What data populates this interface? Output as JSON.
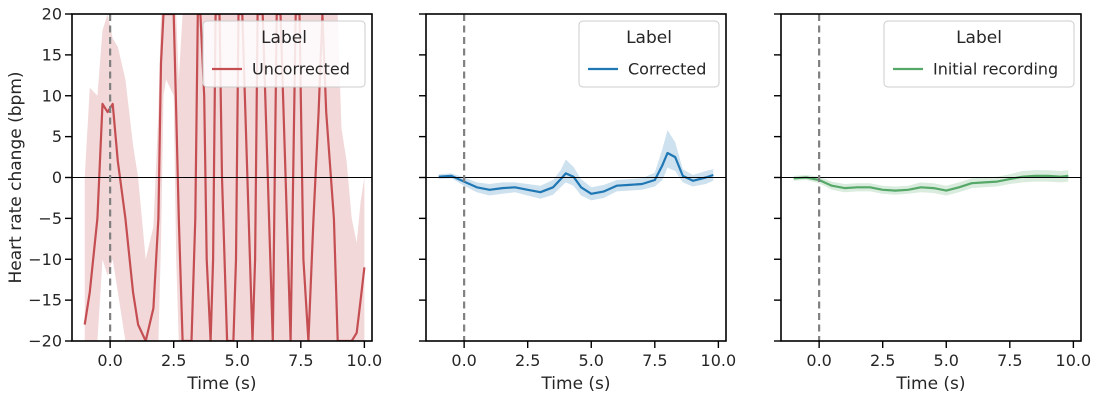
{
  "chart_data": [
    {
      "type": "line",
      "xlabel": "Time (s)",
      "ylabel": "Heart rate change (bpm)",
      "xlim": [
        -1.5,
        10.3
      ],
      "ylim": [
        -20,
        20
      ],
      "xticks": [
        0.0,
        2.5,
        5.0,
        7.5,
        10.0
      ],
      "xtick_labels": [
        "0.0",
        "2.5",
        "5.0",
        "7.5",
        "10.0"
      ],
      "yticks": [
        -20,
        -15,
        -10,
        -5,
        0,
        5,
        10,
        15,
        20
      ],
      "ytick_labels": [
        "−20",
        "−15",
        "−10",
        "−5",
        "0",
        "5",
        "10",
        "15",
        "20"
      ],
      "vline_x": 0,
      "hline_y": 0,
      "legend": {
        "title": "Label",
        "placement": "top-right"
      },
      "series": [
        {
          "name": "Uncorrected",
          "color": "#c44e52",
          "x": [
            -1.0,
            -0.8,
            -0.5,
            -0.3,
            -0.1,
            0.1,
            0.3,
            0.6,
            0.9,
            1.1,
            1.4,
            1.7,
            1.9,
            2.0,
            2.1,
            2.2,
            2.5,
            2.6,
            2.7,
            2.85,
            3.0,
            3.2,
            3.35,
            3.45,
            3.55,
            3.7,
            3.8,
            3.95,
            4.05,
            4.15,
            4.3,
            4.4,
            4.6,
            4.85,
            4.95,
            5.05,
            5.2,
            5.4,
            5.6,
            5.7,
            5.8,
            6.0,
            6.2,
            6.4,
            6.55,
            6.7,
            6.9,
            7.1,
            7.3,
            7.45,
            7.6,
            7.8,
            8.0,
            8.2,
            8.35,
            8.5,
            8.8,
            8.95,
            9.1,
            9.3,
            9.5,
            9.7,
            9.85,
            10.0
          ],
          "y": [
            -18,
            -14,
            -5,
            9,
            8,
            9,
            2,
            -5,
            -14,
            -18,
            -20,
            -16,
            -5,
            14,
            20,
            20,
            20,
            8,
            -5,
            -20,
            -20,
            -20,
            -5,
            20,
            20,
            10,
            -10,
            -20,
            -10,
            20,
            20,
            0,
            -20,
            -20,
            -10,
            20,
            20,
            0,
            -20,
            -10,
            20,
            20,
            0,
            -20,
            20,
            20,
            0,
            -20,
            20,
            20,
            -10,
            -20,
            -5,
            8,
            20,
            8,
            -5,
            -20,
            -20,
            -20,
            -20,
            -19,
            -15,
            -11
          ],
          "band_lower": [
            -20,
            -20,
            -20,
            -10,
            -12,
            -10,
            -14,
            -20,
            -20,
            -20,
            -20,
            -20,
            -20,
            -8,
            10,
            12,
            10,
            -10,
            -20,
            -20,
            -20,
            -20,
            -20,
            -20,
            -20,
            -20,
            -20,
            -20,
            -20,
            -20,
            -20,
            -20,
            -20,
            -20,
            -20,
            -20,
            -20,
            -20,
            -20,
            -20,
            -20,
            -20,
            -20,
            -20,
            -20,
            -20,
            -20,
            -20,
            -20,
            -20,
            -20,
            -20,
            -20,
            -20,
            -20,
            -20,
            -20,
            -20,
            -20,
            -20,
            -20,
            -20,
            -20,
            -20
          ],
          "band_upper": [
            0,
            11,
            10,
            18,
            20,
            17,
            16,
            12,
            4,
            0,
            -10,
            -6,
            8,
            20,
            20,
            20,
            20,
            20,
            12,
            20,
            20,
            20,
            20,
            20,
            20,
            20,
            20,
            20,
            20,
            20,
            20,
            20,
            20,
            20,
            20,
            20,
            20,
            20,
            20,
            20,
            20,
            20,
            20,
            20,
            20,
            20,
            20,
            20,
            20,
            20,
            20,
            20,
            20,
            20,
            20,
            20,
            20,
            20,
            6,
            2,
            -5,
            -8,
            -3,
            0
          ]
        }
      ]
    },
    {
      "type": "line",
      "xlabel": "Time (s)",
      "ylabel": "",
      "xlim": [
        -1.5,
        10.3
      ],
      "ylim": [
        -20,
        20
      ],
      "xticks": [
        0.0,
        2.5,
        5.0,
        7.5,
        10.0
      ],
      "xtick_labels": [
        "0.0",
        "2.5",
        "5.0",
        "7.5",
        "10.0"
      ],
      "yticks": [
        -20,
        -15,
        -10,
        -5,
        0,
        5,
        10,
        15,
        20
      ],
      "ytick_labels": [],
      "vline_x": 0,
      "hline_y": 0,
      "legend": {
        "title": "Label",
        "placement": "top-right"
      },
      "series": [
        {
          "name": "Corrected",
          "color": "#1f77b4",
          "x": [
            -1.0,
            -0.5,
            0.0,
            0.5,
            1.0,
            1.5,
            2.0,
            2.5,
            3.0,
            3.5,
            3.8,
            4.0,
            4.3,
            4.6,
            5.0,
            5.5,
            6.0,
            6.5,
            7.0,
            7.5,
            7.8,
            8.0,
            8.3,
            8.6,
            9.0,
            9.5,
            9.8
          ],
          "y": [
            0.1,
            0.2,
            -0.5,
            -1.2,
            -1.5,
            -1.3,
            -1.2,
            -1.5,
            -1.8,
            -1.2,
            -0.2,
            0.5,
            0.1,
            -1.2,
            -2.0,
            -1.7,
            -1.0,
            -0.9,
            -0.8,
            -0.3,
            1.5,
            3.0,
            2.5,
            0.2,
            -0.4,
            0.0,
            0.3
          ],
          "band_lower": [
            -0.2,
            -0.1,
            -1.0,
            -1.8,
            -2.2,
            -2.0,
            -1.8,
            -2.2,
            -2.6,
            -2.1,
            -1.2,
            -0.6,
            -1.0,
            -2.2,
            -2.8,
            -2.5,
            -1.7,
            -1.6,
            -1.5,
            -1.1,
            -0.3,
            1.2,
            0.8,
            -0.6,
            -1.1,
            -0.8,
            -0.4
          ],
          "band_upper": [
            0.4,
            0.5,
            0.0,
            -0.6,
            -0.8,
            -0.6,
            -0.6,
            -0.8,
            -1.0,
            -0.3,
            0.9,
            2.2,
            1.3,
            -0.2,
            -1.2,
            -0.9,
            -0.3,
            -0.2,
            -0.1,
            0.6,
            3.5,
            5.8,
            4.3,
            1.0,
            0.3,
            0.8,
            1.0
          ]
        }
      ]
    },
    {
      "type": "line",
      "xlabel": "Time (s)",
      "ylabel": "",
      "xlim": [
        -1.5,
        10.3
      ],
      "ylim": [
        -20,
        20
      ],
      "xticks": [
        0.0,
        2.5,
        5.0,
        7.5,
        10.0
      ],
      "xtick_labels": [
        "0.0",
        "2.5",
        "5.0",
        "7.5",
        "10.0"
      ],
      "yticks": [
        -20,
        -15,
        -10,
        -5,
        0,
        5,
        10,
        15,
        20
      ],
      "ytick_labels": [],
      "vline_x": 0,
      "hline_y": 0,
      "legend": {
        "title": "Label",
        "placement": "top-right"
      },
      "series": [
        {
          "name": "Initial recording",
          "color": "#55a868",
          "x": [
            -1.0,
            -0.5,
            0.0,
            0.5,
            1.0,
            1.5,
            2.0,
            2.5,
            3.0,
            3.5,
            4.0,
            4.5,
            5.0,
            5.5,
            6.0,
            6.5,
            7.0,
            7.5,
            8.0,
            8.5,
            9.0,
            9.5,
            9.8
          ],
          "y": [
            -0.1,
            0.0,
            -0.3,
            -1.0,
            -1.3,
            -1.2,
            -1.2,
            -1.5,
            -1.6,
            -1.5,
            -1.2,
            -1.3,
            -1.6,
            -1.2,
            -0.7,
            -0.6,
            -0.5,
            -0.2,
            0.1,
            0.2,
            0.2,
            0.1,
            0.2
          ],
          "band_lower": [
            -0.4,
            -0.3,
            -0.7,
            -1.5,
            -1.8,
            -1.7,
            -1.7,
            -2.0,
            -2.1,
            -2.0,
            -1.8,
            -1.9,
            -2.2,
            -1.8,
            -1.3,
            -1.2,
            -1.1,
            -0.8,
            -0.6,
            -0.5,
            -0.5,
            -0.6,
            -0.5
          ],
          "band_upper": [
            0.2,
            0.3,
            0.1,
            -0.5,
            -0.8,
            -0.7,
            -0.7,
            -1.0,
            -1.1,
            -1.0,
            -0.6,
            -0.7,
            -1.0,
            -0.6,
            -0.1,
            0.0,
            0.1,
            0.4,
            0.8,
            0.9,
            0.9,
            0.8,
            0.9
          ]
        }
      ]
    }
  ]
}
